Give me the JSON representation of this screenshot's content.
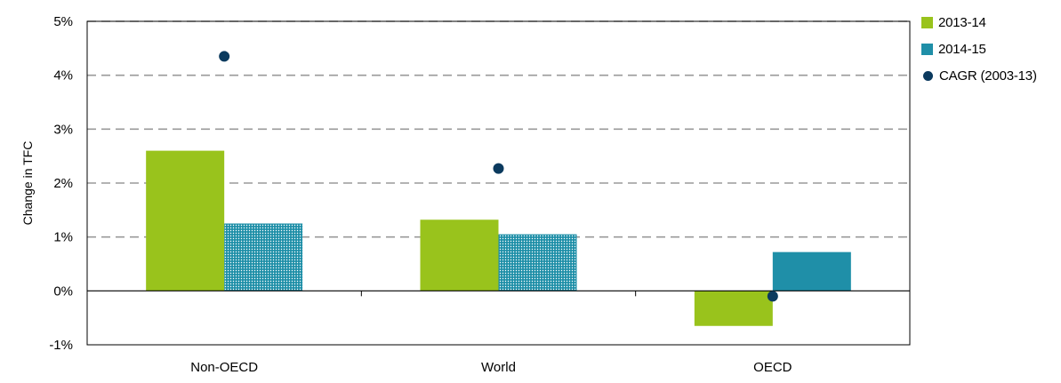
{
  "chart_data": {
    "type": "bar",
    "title": "",
    "xlabel": "",
    "ylabel": "Change in TFC",
    "ylim": [
      -1,
      5
    ],
    "yticks": [
      -1,
      0,
      1,
      2,
      3,
      4,
      5
    ],
    "ytick_labels": [
      "-1%",
      "0%",
      "1%",
      "2%",
      "3%",
      "4%",
      "5%"
    ],
    "categories": [
      "Non-OECD",
      "World",
      "OECD"
    ],
    "series": [
      {
        "name": "2013-14",
        "kind": "bar",
        "color": "#99c31c",
        "pattern": "solid",
        "values": [
          2.6,
          1.32,
          -0.65
        ]
      },
      {
        "name": "2014-15",
        "kind": "bar",
        "color": "#1f8fa8",
        "pattern": "dotted-texture",
        "values": [
          1.25,
          1.05,
          0.72
        ]
      },
      {
        "name": "CAGR (2003-13)",
        "kind": "point",
        "color": "#0b3a5e",
        "values": [
          4.35,
          2.27,
          -0.1
        ]
      }
    ],
    "grid": "dashed-horizontal",
    "legend_position": "right"
  }
}
